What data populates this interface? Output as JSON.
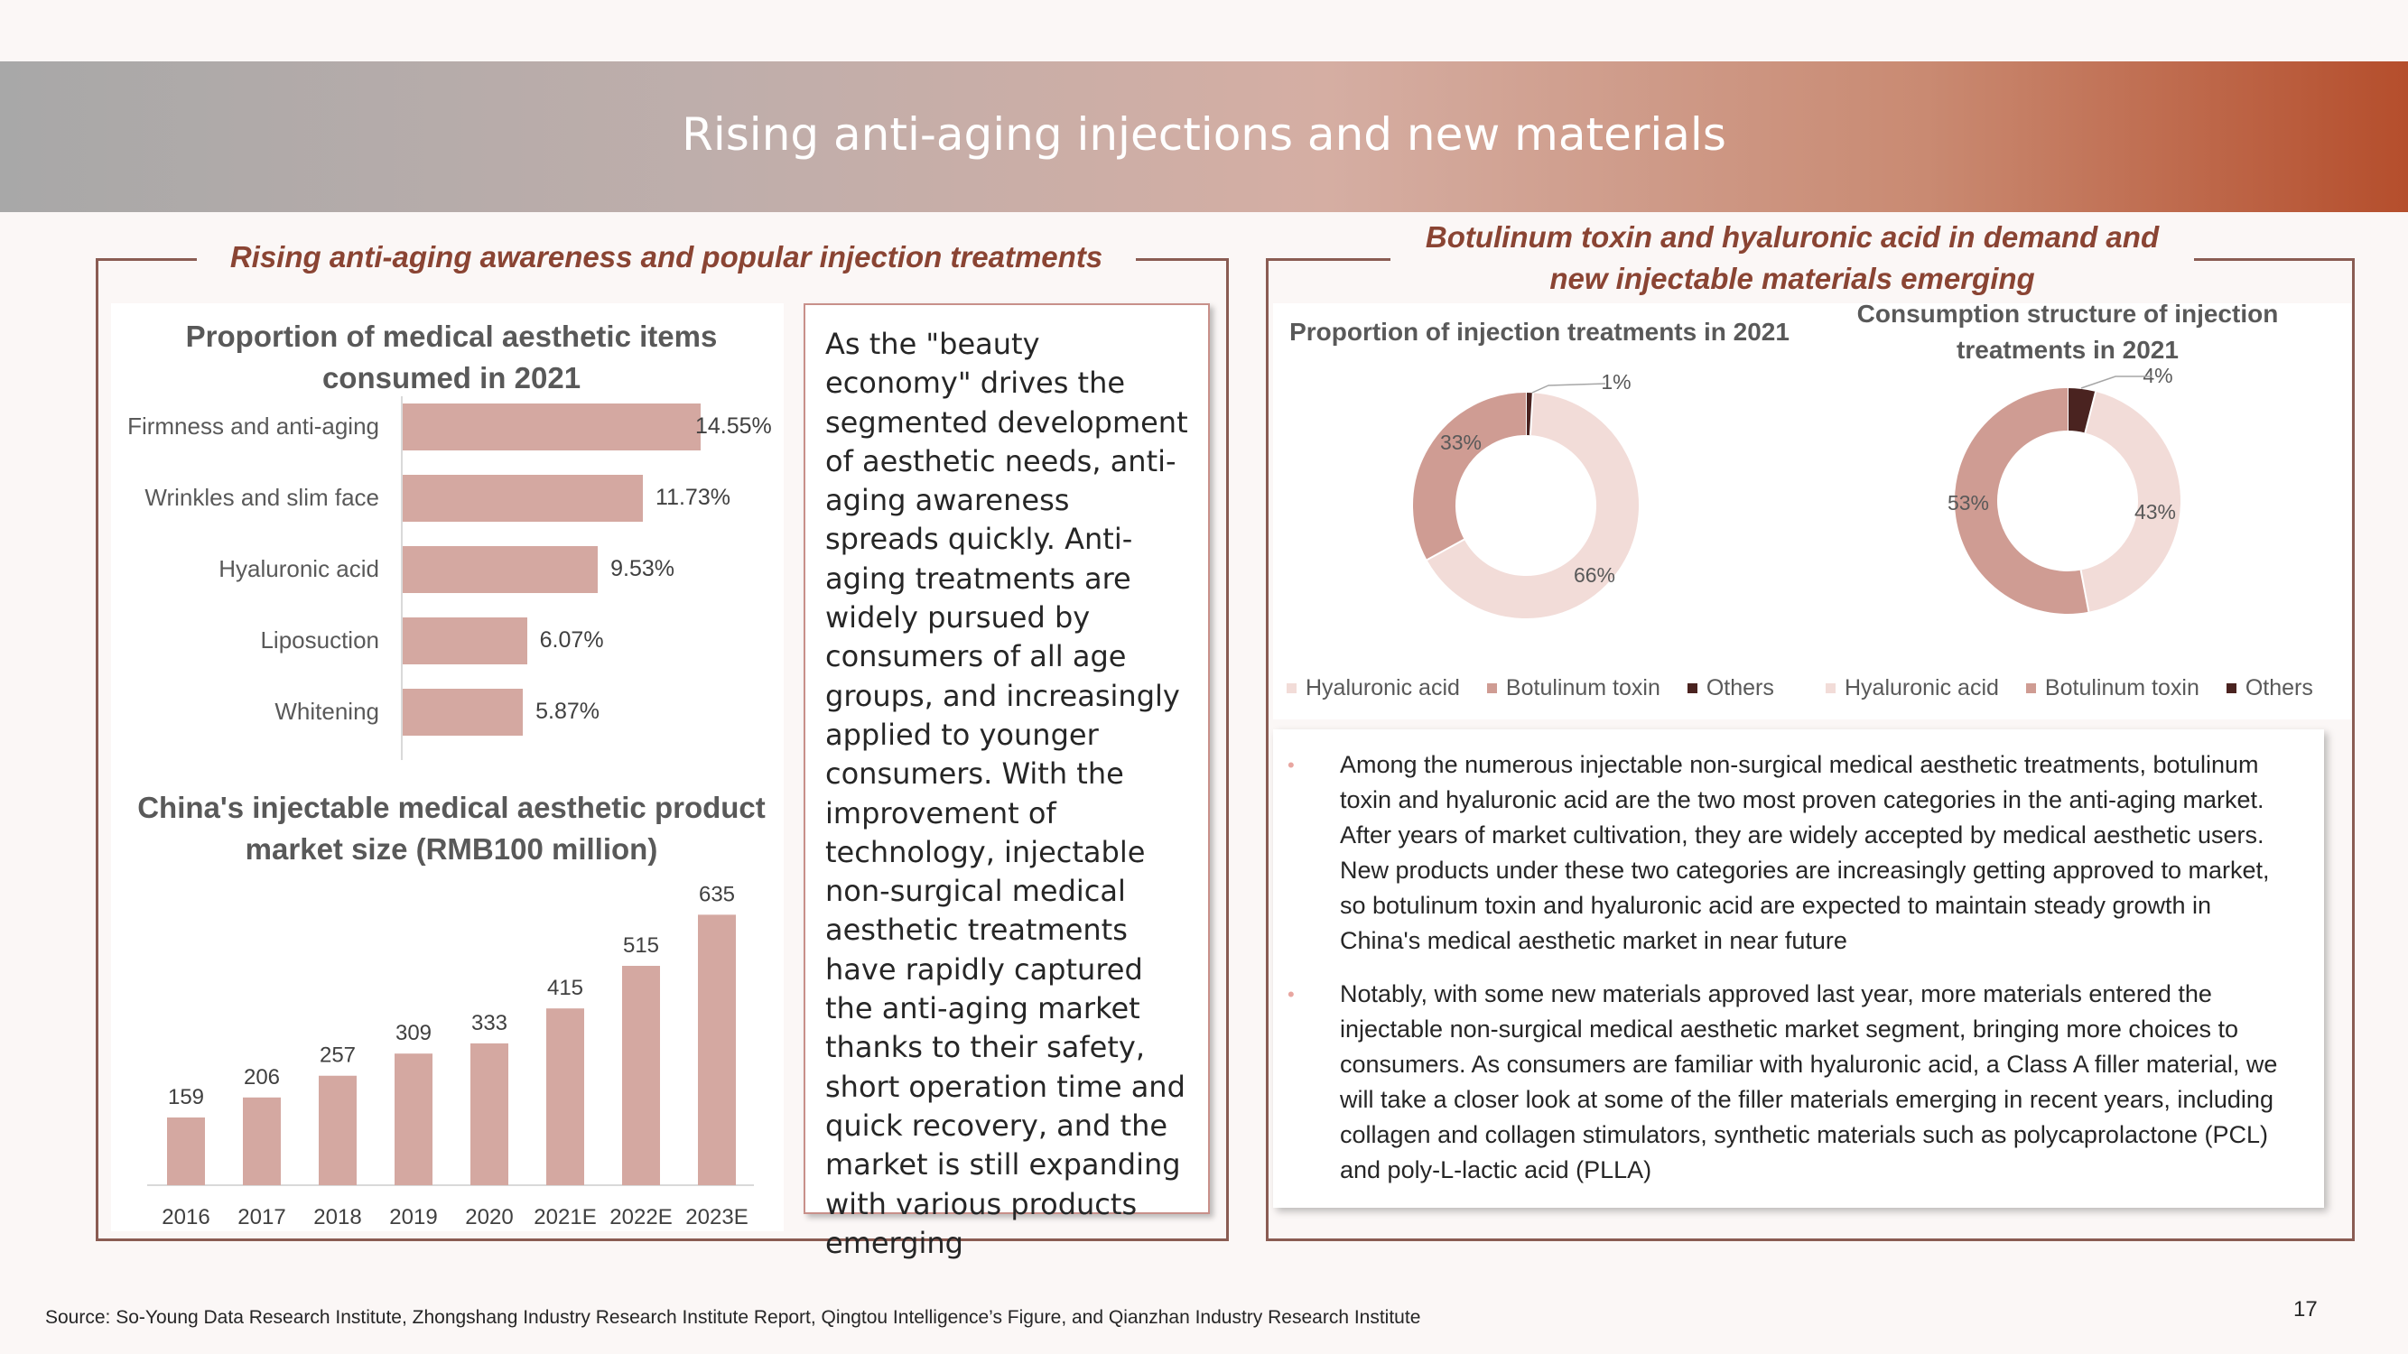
{
  "header": {
    "title": "Rising anti-aging injections and new materials"
  },
  "left_section": {
    "title": "Rising anti-aging awareness and popular injection treatments",
    "text": "As the \"beauty economy\" drives the segmented development of aesthetic needs, anti-aging awareness spreads quickly. Anti-aging treatments are widely pursued by consumers of all age groups, and increasingly applied to younger consumers. With the improvement of technology, injectable non-surgical medical  aesthetic treatments have rapidly captured the anti-aging market thanks to their safety, short operation time and quick recovery, and the market is still expanding with various products emerging"
  },
  "right_section": {
    "title_line1": "Botulinum toxin and hyaluronic acid in demand and",
    "title_line2": "new injectable materials emerging",
    "bullets": [
      "Among the numerous injectable non-surgical medical  aesthetic treatments, botulinum toxin and hyaluronic acid are the two most proven categories in the anti-aging market. After years of market cultivation, they are widely accepted by medical aesthetic users. New products under these two categories are increasingly getting approved to market, so botulinum toxin and hyaluronic acid are expected to maintain steady growth in China's medical aesthetic market in near future",
      "Notably, with some new materials approved last year, more materials entered the injectable non-surgical medical  aesthetic market segment, bringing more choices to consumers. As consumers are familiar with hyaluronic acid, a Class A filler material, we will take a closer look at some of the filler materials emerging in recent years, including collagen and collagen stimulators, synthetic materials such as polycaprolactone (PCL) and poly-L-lactic acid (PLLA)"
    ]
  },
  "chart_data": [
    {
      "type": "bar",
      "orientation": "horizontal",
      "title": "Proportion of medical aesthetic items consumed in 2021",
      "categories": [
        "Firmness and anti-aging",
        "Wrinkles and slim face",
        "Hyaluronic acid",
        "Liposuction",
        "Whitening"
      ],
      "values": [
        14.55,
        11.73,
        9.53,
        6.07,
        5.87
      ],
      "value_labels": [
        "14.55%",
        "11.73%",
        "9.53%",
        "6.07%",
        "5.87%"
      ],
      "xlim": [
        0,
        16
      ],
      "color": "#d4a8a1"
    },
    {
      "type": "bar",
      "title": "China's injectable medical aesthetic product market size (RMB100 million)",
      "categories": [
        "2016",
        "2017",
        "2018",
        "2019",
        "2020",
        "2021E",
        "2022E",
        "2023E"
      ],
      "values": [
        159,
        206,
        257,
        309,
        333,
        415,
        515,
        635
      ],
      "ylim": [
        0,
        640
      ],
      "color": "#d4a8a1"
    },
    {
      "type": "pie",
      "donut": true,
      "title": "Proportion of injection treatments in 2021",
      "categories": [
        "Hyaluronic acid",
        "Botulinum toxin",
        "Others"
      ],
      "values": [
        66,
        33,
        1
      ],
      "value_labels": [
        "66%",
        "33%",
        "1%"
      ],
      "colors": [
        "#f2dcd8",
        "#cf9c93",
        "#4a2320"
      ],
      "legend": "bottom"
    },
    {
      "type": "pie",
      "donut": true,
      "title": "Consumption structure of injection treatments in 2021",
      "categories": [
        "Hyaluronic acid",
        "Botulinum toxin",
        "Others"
      ],
      "values": [
        43,
        53,
        4
      ],
      "value_labels": [
        "43%",
        "53%",
        "4%"
      ],
      "colors": [
        "#f2dcd8",
        "#cf9c93",
        "#4a2320"
      ],
      "legend": "bottom"
    }
  ],
  "footer": {
    "source": "Source: So-Young Data Research Institute, Zhongshang Industry Research Institute Report, Qingtou Intelligence’s Figure, and Qianzhan Industry Research Institute",
    "page": "17"
  }
}
